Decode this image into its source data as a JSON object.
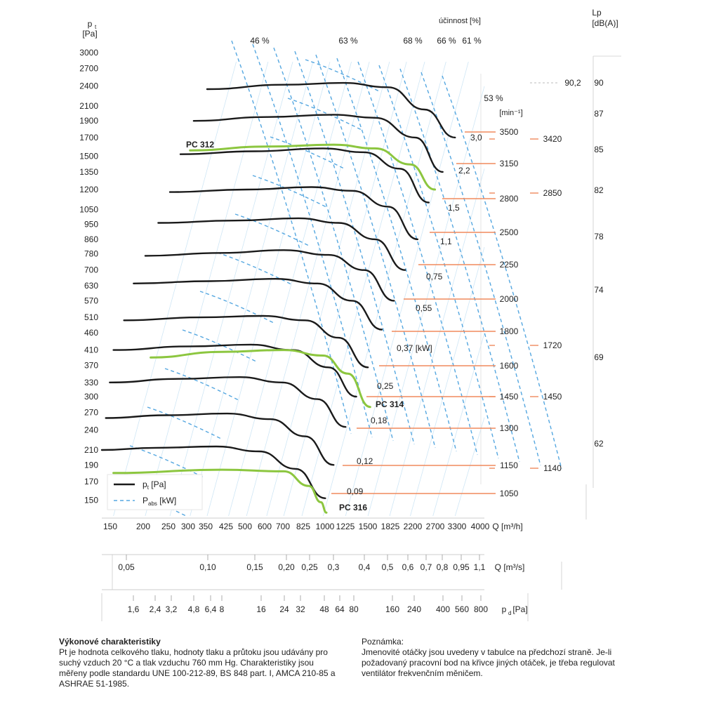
{
  "chart_data": {
    "type": "line",
    "y_axis": {
      "label": "p",
      "label_sub": "t",
      "unit": "[Pa]",
      "ticks": [
        150,
        170,
        190,
        210,
        240,
        270,
        300,
        330,
        370,
        410,
        460,
        510,
        570,
        630,
        700,
        780,
        860,
        950,
        1050,
        1200,
        1350,
        1500,
        1700,
        1900,
        2100,
        2400,
        2700,
        3000
      ],
      "scale": "log",
      "range": [
        135,
        3100
      ]
    },
    "x_axis_flow_h": {
      "unit_label": "Q [m³/h]",
      "ticks": [
        "150",
        "200",
        "250",
        "300",
        "350",
        "425",
        "500",
        "600",
        "700",
        "825",
        "1000",
        "1225",
        "1500",
        "1825",
        "2200",
        "2700",
        "3300",
        "4000"
      ],
      "scale": "log",
      "range": [
        135,
        4300
      ]
    },
    "x_axis_flow_s": {
      "unit_label": "Q [m³/s]",
      "ticks": [
        "0,05",
        "0,10",
        "0,15",
        "0,20",
        "0,25",
        "0,3",
        "0,4",
        "0,5",
        "0,6",
        "0,7",
        "0,8",
        "0,95",
        "1,1"
      ]
    },
    "x_axis_dynamic_pressure": {
      "unit_label": "[Pa]",
      "label": "p",
      "label_sub": "d",
      "ticks": [
        "1,6",
        "2,4",
        "3,2",
        "4,8",
        "6,4",
        "8",
        "16",
        "24",
        "32",
        "48",
        "64",
        "80",
        "160",
        "240",
        "400",
        "560",
        "800"
      ]
    },
    "efficiency_header": "účinnost [%]",
    "efficiency_labels": [
      "46 %",
      "63 %",
      "68 %",
      "66 %",
      "61 %",
      "53 %"
    ],
    "speed_header": "[min⁻¹]",
    "speeds": [
      3500,
      3150,
      2800,
      2500,
      2250,
      2000,
      1800,
      1600,
      1450,
      1300,
      1150,
      1050
    ],
    "power_labels": [
      "3,0",
      "2,2",
      "1,5",
      "1,1",
      "0,75",
      "0,55",
      "0,37 [kW]",
      "0,25",
      "0,18",
      "0,12",
      "0,09"
    ],
    "lp_header": "Lp",
    "lp_unit": "dB(A)",
    "lp_ticks": [
      90,
      87,
      85,
      82,
      78,
      74,
      69,
      62
    ],
    "model_speeds": [
      {
        "rpm": 3420,
        "lp": "90,2"
      },
      {
        "rpm": 2850
      },
      {
        "rpm": 1720
      },
      {
        "rpm": 1450
      },
      {
        "rpm": 1140
      }
    ],
    "series": [
      {
        "type": "pt",
        "rpm": 3500,
        "points": [
          [
            350,
            2350
          ],
          [
            700,
            2420
          ],
          [
            1200,
            2450
          ],
          [
            1800,
            2380
          ],
          [
            2500,
            2050
          ],
          [
            3300,
            1700
          ]
        ]
      },
      {
        "type": "pt",
        "rpm": 3150,
        "points": [
          [
            310,
            1900
          ],
          [
            600,
            1950
          ],
          [
            1100,
            1980
          ],
          [
            1600,
            1940
          ],
          [
            2300,
            1700
          ],
          [
            2950,
            1350
          ]
        ]
      },
      {
        "type": "pt",
        "rpm": 2800,
        "points": [
          [
            275,
            1520
          ],
          [
            540,
            1550
          ],
          [
            1000,
            1580
          ],
          [
            1450,
            1540
          ],
          [
            2000,
            1380
          ],
          [
            2600,
            1100
          ]
        ]
      },
      {
        "type": "pt",
        "rpm": 2500,
        "points": [
          [
            250,
            1180
          ],
          [
            500,
            1200
          ],
          [
            900,
            1220
          ],
          [
            1300,
            1190
          ],
          [
            1800,
            1070
          ],
          [
            2350,
            860
          ]
        ]
      },
      {
        "type": "pt",
        "rpm": 2250,
        "points": [
          [
            225,
            960
          ],
          [
            450,
            975
          ],
          [
            800,
            990
          ],
          [
            1150,
            960
          ],
          [
            1600,
            860
          ],
          [
            2100,
            700
          ]
        ]
      },
      {
        "type": "pt",
        "rpm": 2000,
        "points": [
          [
            200,
            770
          ],
          [
            400,
            785
          ],
          [
            700,
            800
          ],
          [
            1050,
            775
          ],
          [
            1450,
            700
          ],
          [
            1900,
            570
          ]
        ]
      },
      {
        "type": "pt",
        "rpm": 1800,
        "points": [
          [
            180,
            640
          ],
          [
            360,
            650
          ],
          [
            650,
            660
          ],
          [
            950,
            640
          ],
          [
            1300,
            570
          ],
          [
            1700,
            470
          ]
        ]
      },
      {
        "type": "pt",
        "rpm": 1600,
        "points": [
          [
            165,
            500
          ],
          [
            330,
            510
          ],
          [
            580,
            515
          ],
          [
            850,
            500
          ],
          [
            1150,
            445
          ],
          [
            1500,
            365
          ]
        ]
      },
      {
        "type": "pt",
        "rpm": 1450,
        "points": [
          [
            150,
            410
          ],
          [
            300,
            420
          ],
          [
            520,
            425
          ],
          [
            760,
            410
          ],
          [
            1050,
            365
          ],
          [
            1350,
            300
          ]
        ]
      },
      {
        "type": "pt",
        "rpm": 1300,
        "points": [
          [
            145,
            330
          ],
          [
            270,
            338
          ],
          [
            470,
            342
          ],
          [
            690,
            330
          ],
          [
            950,
            295
          ],
          [
            1225,
            245
          ]
        ]
      },
      {
        "type": "pt",
        "rpm": 1150,
        "points": [
          [
            140,
            260
          ],
          [
            240,
            265
          ],
          [
            420,
            268
          ],
          [
            620,
            258
          ],
          [
            850,
            230
          ],
          [
            1100,
            190
          ]
        ]
      },
      {
        "type": "pt",
        "rpm": 1050,
        "points": [
          [
            135,
            210
          ],
          [
            220,
            213
          ],
          [
            380,
            215
          ],
          [
            560,
            208
          ],
          [
            780,
            185
          ],
          [
            1020,
            152
          ]
        ]
      },
      {
        "type": "model",
        "name": "PC 312",
        "points": [
          [
            300,
            1560
          ],
          [
            600,
            1600
          ],
          [
            1100,
            1620
          ],
          [
            1600,
            1580
          ],
          [
            2200,
            1420
          ],
          [
            2750,
            1200
          ]
        ]
      },
      {
        "type": "model",
        "name": "PC 314",
        "points": [
          [
            210,
            390
          ],
          [
            400,
            405
          ],
          [
            700,
            410
          ],
          [
            1000,
            395
          ],
          [
            1250,
            350
          ],
          [
            1530,
            280
          ]
        ]
      },
      {
        "type": "model",
        "name": "PC 316",
        "points": [
          [
            150,
            180
          ],
          [
            400,
            184
          ],
          [
            700,
            182
          ],
          [
            880,
            165
          ],
          [
            980,
            148
          ],
          [
            1030,
            138
          ]
        ]
      }
    ],
    "legend": {
      "position": "bottom-left",
      "items": [
        {
          "label": "p",
          "sub": "t",
          "suffix": " [Pa]",
          "style": "solid"
        },
        {
          "label": "P",
          "sub": "abs",
          "suffix": " [kW]",
          "style": "dashed"
        }
      ]
    },
    "colors": {
      "curve": "#1a1a1a",
      "model": "#8cc63f",
      "power": "#55a7e0",
      "speed_line": "#f08a5d",
      "grid": "#cfe6f5"
    }
  },
  "notes": {
    "left_title": "Výkonové charakteristiky",
    "left_text": "Pt je hodnota celkového tlaku, hodnoty tlaku a průtoku jsou udávány pro suchý vzduch 20 °C a tlak vzduchu 760 mm Hg. Charakteristiky jsou měřeny podle standardu UNE 100-212-89, BS 848 part. I, AMCA 210-85 a ASHRAE 51-1985.",
    "right_title": "Poznámka:",
    "right_text": "Jmenovité otáčky jsou uvedeny v tabulce na předchozí straně. Je-li požadovaný pracovní bod na křivce jiných otáček, je třeba regulovat ventilátor frekvenčním měničem."
  }
}
